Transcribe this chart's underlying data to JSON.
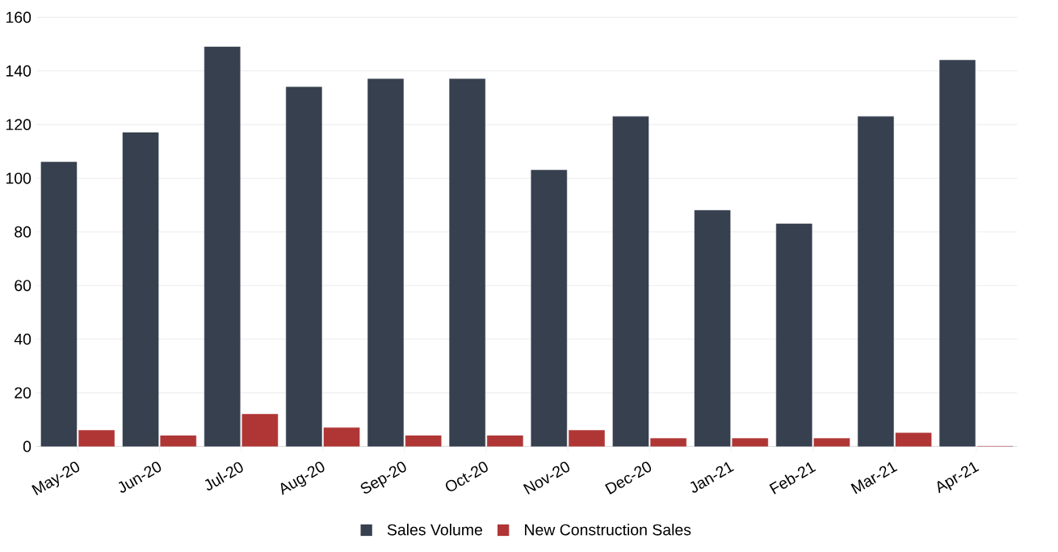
{
  "chart_data": {
    "type": "bar",
    "categories": [
      "May-20",
      "Jun-20",
      "Jul-20",
      "Aug-20",
      "Sep-20",
      "Oct-20",
      "Nov-20",
      "Dec-20",
      "Jan-21",
      "Feb-21",
      "Mar-21",
      "Apr-21"
    ],
    "series": [
      {
        "name": "Sales Volume",
        "color": "#36404f",
        "values": [
          106,
          117,
          149,
          134,
          137,
          137,
          103,
          123,
          88,
          83,
          123,
          144
        ]
      },
      {
        "name": "New Construction Sales",
        "color": "#b03636",
        "values": [
          6,
          4,
          12,
          7,
          4,
          4,
          6,
          3,
          3,
          3,
          5,
          0
        ]
      }
    ],
    "ylim": [
      0,
      160
    ],
    "yticks": [
      0,
      20,
      40,
      60,
      80,
      100,
      120,
      140,
      160
    ],
    "grid": "y",
    "legend": "bottom"
  }
}
